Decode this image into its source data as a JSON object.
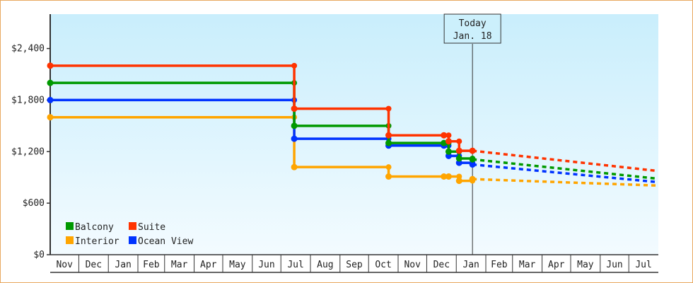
{
  "chart_data": {
    "type": "line",
    "title": "",
    "xlabel": "",
    "ylabel": "",
    "x_unit": "days since first Nov 1 on axis",
    "xlim": [
      0,
      638
    ],
    "ylim": [
      0,
      2800
    ],
    "y_ticks": [
      0,
      600,
      1200,
      1800,
      2400
    ],
    "y_tick_labels": [
      "$0",
      "$600",
      "$1,200",
      "$1,800",
      "$2,400"
    ],
    "months": [
      {
        "label": "Nov",
        "days": 30
      },
      {
        "label": "Dec",
        "days": 31
      },
      {
        "label": "Jan",
        "days": 31
      },
      {
        "label": "Feb",
        "days": 28
      },
      {
        "label": "Mar",
        "days": 31
      },
      {
        "label": "Apr",
        "days": 30
      },
      {
        "label": "May",
        "days": 31
      },
      {
        "label": "Jun",
        "days": 30
      },
      {
        "label": "Jul",
        "days": 31
      },
      {
        "label": "Aug",
        "days": 31
      },
      {
        "label": "Sep",
        "days": 30
      },
      {
        "label": "Oct",
        "days": 31
      },
      {
        "label": "Nov",
        "days": 30
      },
      {
        "label": "Dec",
        "days": 31
      },
      {
        "label": "Jan",
        "days": 31
      },
      {
        "label": "Feb",
        "days": 28
      },
      {
        "label": "Mar",
        "days": 31
      },
      {
        "label": "Apr",
        "days": 30
      },
      {
        "label": "May",
        "days": 31
      },
      {
        "label": "Jun",
        "days": 30
      },
      {
        "label": "Jul",
        "days": 31
      }
    ],
    "today": {
      "day": 443,
      "label_line1": "Today",
      "label_line2": "Jan. 18"
    },
    "legend_position": "bottom-left",
    "series": [
      {
        "name": "Balcony",
        "color": "#009900",
        "points": [
          [
            0,
            2000
          ],
          [
            256,
            1500
          ],
          [
            355,
            1300
          ],
          [
            413,
            1300
          ],
          [
            418,
            1200
          ],
          [
            429,
            1120
          ],
          [
            443,
            1110
          ]
        ],
        "forecast": [
          [
            443,
            1110
          ],
          [
            637,
            885
          ]
        ]
      },
      {
        "name": "Suite",
        "color": "#ff3300",
        "points": [
          [
            0,
            2200
          ],
          [
            256,
            1700
          ],
          [
            355,
            1390
          ],
          [
            413,
            1390
          ],
          [
            418,
            1320
          ],
          [
            429,
            1210
          ],
          [
            443,
            1210
          ]
        ],
        "forecast": [
          [
            443,
            1210
          ],
          [
            637,
            975
          ]
        ]
      },
      {
        "name": "Interior",
        "color": "#ffa500",
        "points": [
          [
            0,
            1600
          ],
          [
            256,
            1020
          ],
          [
            355,
            910
          ],
          [
            413,
            910
          ],
          [
            418,
            910
          ],
          [
            429,
            860
          ],
          [
            443,
            880
          ]
        ],
        "forecast": [
          [
            443,
            880
          ],
          [
            637,
            805
          ]
        ]
      },
      {
        "name": "Ocean View",
        "color": "#0033ff",
        "points": [
          [
            0,
            1800
          ],
          [
            256,
            1350
          ],
          [
            355,
            1270
          ],
          [
            413,
            1270
          ],
          [
            418,
            1150
          ],
          [
            429,
            1070
          ],
          [
            443,
            1050
          ]
        ],
        "forecast": [
          [
            443,
            1050
          ],
          [
            637,
            845
          ]
        ]
      }
    ]
  }
}
